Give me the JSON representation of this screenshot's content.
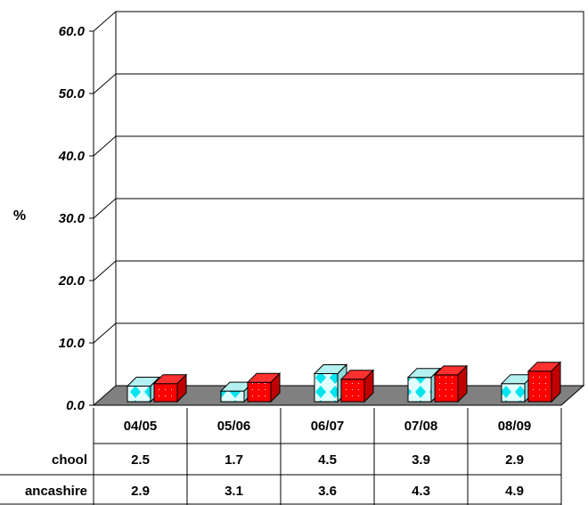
{
  "chart_data": {
    "type": "bar",
    "ylabel": "%",
    "ylim": [
      0,
      60
    ],
    "yticks": [
      "0.0",
      "10.0",
      "20.0",
      "30.0",
      "40.0",
      "50.0",
      "60.0"
    ],
    "categories": [
      "04/05",
      "05/06",
      "06/07",
      "07/08",
      "08/09"
    ],
    "series": [
      {
        "name": "chool",
        "values": [
          2.5,
          1.7,
          4.5,
          3.9,
          2.9
        ],
        "value_labels": [
          "2.5",
          "1.7",
          "4.5",
          "3.9",
          "2.9"
        ],
        "color": "#e0ffff",
        "pattern_color": "#00e5ee"
      },
      {
        "name": "ancashire",
        "values": [
          2.9,
          3.1,
          3.6,
          4.3,
          4.9
        ],
        "value_labels": [
          "2.9",
          "3.1",
          "3.6",
          "4.3",
          "4.9"
        ],
        "color": "#ff0000",
        "pattern_color": "#ffffff"
      }
    ],
    "grid": true,
    "legend": "data table below chart"
  }
}
